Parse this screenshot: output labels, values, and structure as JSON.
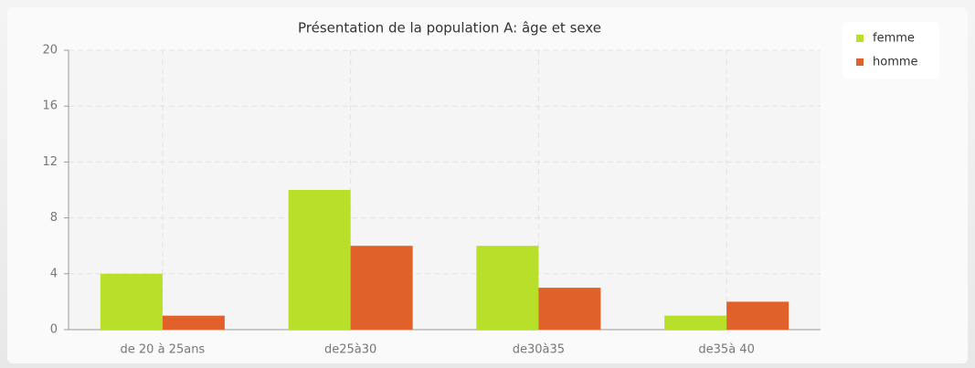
{
  "chart_data": {
    "type": "bar",
    "title": "Présentation de la population A: âge et sexe",
    "categories": [
      "de 20 à 25ans",
      "de25à30",
      "de30à35",
      "de35à 40"
    ],
    "series": [
      {
        "name": "femme",
        "color": "#b8e02b",
        "values": [
          4,
          10,
          6,
          1
        ]
      },
      {
        "name": "homme",
        "color": "#e0622a",
        "values": [
          1,
          6,
          3,
          2
        ]
      }
    ],
    "ylim": [
      0,
      20
    ],
    "yticks": [
      0,
      4,
      8,
      12,
      16,
      20
    ],
    "grid": true,
    "legend": "top-right"
  }
}
